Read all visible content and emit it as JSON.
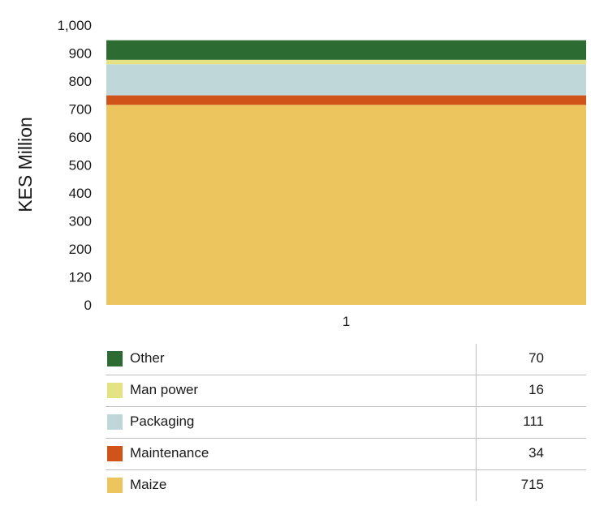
{
  "chart_data": {
    "type": "bar",
    "stacked": true,
    "categories": [
      "1"
    ],
    "ylabel": "KES Million",
    "ylim": [
      0,
      1000
    ],
    "yticks": [
      "0",
      "120",
      "200",
      "300",
      "400",
      "500",
      "600",
      "700",
      "800",
      "900",
      "1,000"
    ],
    "grid": false,
    "series": [
      {
        "name": "Maize",
        "values": [
          715
        ],
        "color": "#ECC55F"
      },
      {
        "name": "Maintenance",
        "values": [
          34
        ],
        "color": "#D05419"
      },
      {
        "name": "Packaging",
        "values": [
          111
        ],
        "color": "#BFD7D8"
      },
      {
        "name": "Man power",
        "values": [
          16
        ],
        "color": "#E3E383"
      },
      {
        "name": "Other",
        "values": [
          70
        ],
        "color": "#2C6B32"
      }
    ]
  },
  "legend_table": [
    {
      "name": "Other",
      "value": "70",
      "color": "#2C6B32"
    },
    {
      "name": "Man power",
      "value": "16",
      "color": "#E3E383"
    },
    {
      "name": "Packaging",
      "value": "111",
      "color": "#BFD7D8"
    },
    {
      "name": "Maintenance",
      "value": "34",
      "color": "#D05419"
    },
    {
      "name": "Maize",
      "value": "715",
      "color": "#ECC55F"
    }
  ]
}
